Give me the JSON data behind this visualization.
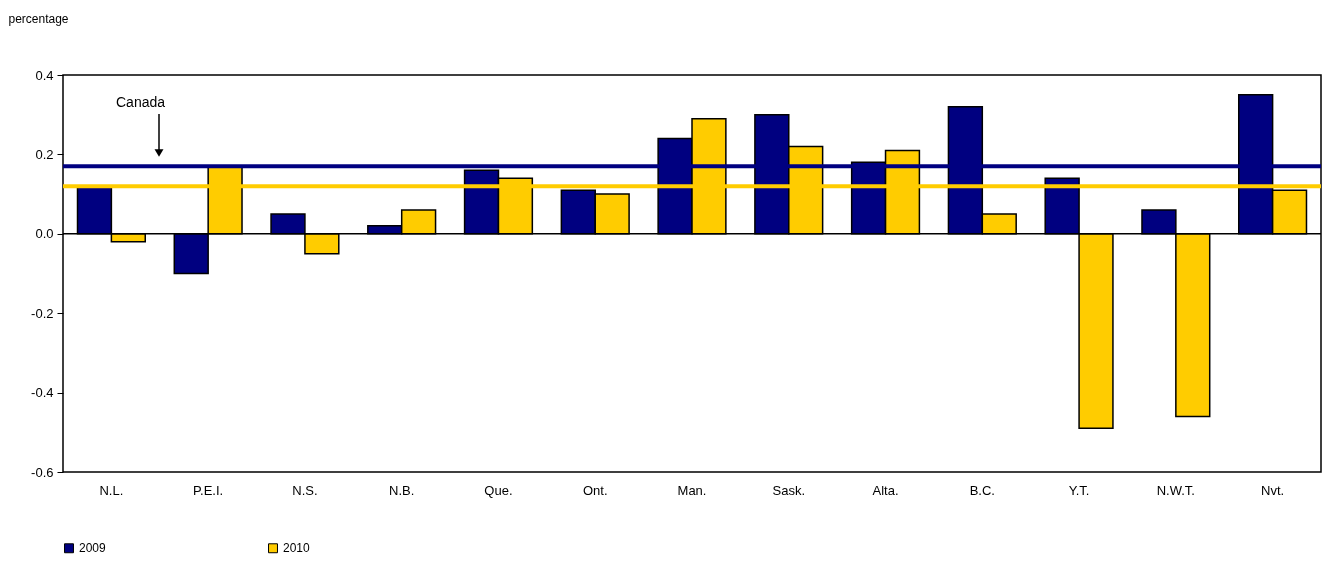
{
  "chart_data": {
    "type": "bar",
    "ylabel": "percentage",
    "categories": [
      "N.L.",
      "P.E.I.",
      "N.S.",
      "N.B.",
      "Que.",
      "Ont.",
      "Man.",
      "Sask.",
      "Alta.",
      "B.C.",
      "Y.T.",
      "N.W.T.",
      "Nvt."
    ],
    "series": [
      {
        "name": "2009",
        "color": "#000080",
        "values": [
          0.12,
          -0.1,
          0.05,
          0.02,
          0.16,
          0.11,
          0.24,
          0.3,
          0.18,
          0.32,
          0.14,
          0.06,
          0.35
        ]
      },
      {
        "name": "2010",
        "color": "#ffcc00",
        "values": [
          -0.02,
          0.17,
          -0.05,
          0.06,
          0.14,
          0.1,
          0.29,
          0.22,
          0.21,
          0.05,
          -0.49,
          -0.46,
          0.11
        ]
      }
    ],
    "ylim": [
      -0.6,
      0.4
    ],
    "yticks": [
      {
        "value": -0.6,
        "label": "-0.6"
      },
      {
        "value": -0.4,
        "label": "-0.4"
      },
      {
        "value": -0.2,
        "label": "-0.2"
      },
      {
        "value": 0,
        "label": "0.0"
      },
      {
        "value": 0.2,
        "label": "0.2"
      },
      {
        "value": 0.4,
        "label": "0.4"
      }
    ],
    "ref_lines": [
      {
        "axis": "y",
        "value": 0.17,
        "color": "#000080"
      },
      {
        "axis": "y",
        "value": 0.12,
        "color": "#ffcc00"
      }
    ],
    "annotations": [
      "Canada"
    ],
    "legend": "bottom"
  }
}
